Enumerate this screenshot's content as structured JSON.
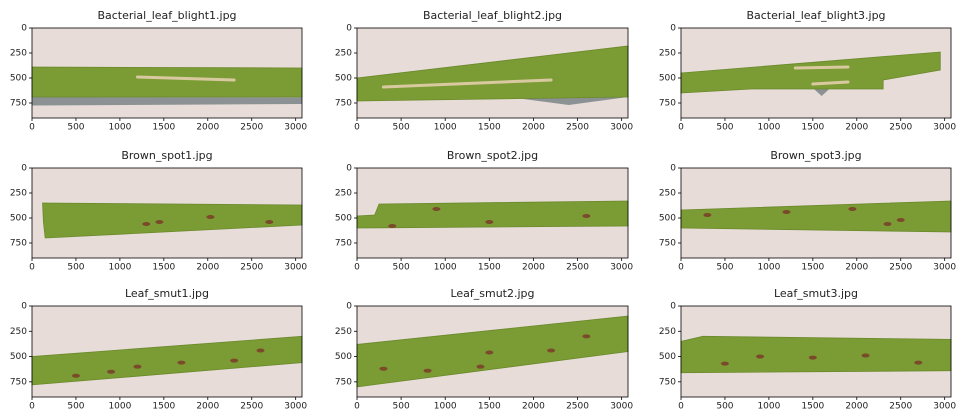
{
  "chart_data": [
    {
      "type": "image",
      "title": "Bacterial_leaf_blight1.jpg",
      "xlim": [
        0,
        3072
      ],
      "ylim": [
        900,
        0
      ],
      "xticks": [
        0,
        500,
        1000,
        1500,
        2000,
        2500,
        3000
      ],
      "yticks": [
        0,
        250,
        500,
        750
      ]
    },
    {
      "type": "image",
      "title": "Bacterial_leaf_blight2.jpg",
      "xlim": [
        0,
        3072
      ],
      "ylim": [
        900,
        0
      ],
      "xticks": [
        0,
        500,
        1000,
        1500,
        2000,
        2500,
        3000
      ],
      "yticks": [
        0,
        250,
        500,
        750
      ]
    },
    {
      "type": "image",
      "title": "Bacterial_leaf_blight3.jpg",
      "xlim": [
        0,
        3072
      ],
      "ylim": [
        900,
        0
      ],
      "xticks": [
        0,
        500,
        1000,
        1500,
        2000,
        2500,
        3000
      ],
      "yticks": [
        0,
        250,
        500,
        750
      ]
    },
    {
      "type": "image",
      "title": "Brown_spot1.jpg",
      "xlim": [
        0,
        3072
      ],
      "ylim": [
        900,
        0
      ],
      "xticks": [
        0,
        500,
        1000,
        1500,
        2000,
        2500,
        3000
      ],
      "yticks": [
        0,
        250,
        500,
        750
      ]
    },
    {
      "type": "image",
      "title": "Brown_spot2.jpg",
      "xlim": [
        0,
        3072
      ],
      "ylim": [
        900,
        0
      ],
      "xticks": [
        0,
        500,
        1000,
        1500,
        2000,
        2500,
        3000
      ],
      "yticks": [
        0,
        250,
        500,
        750
      ]
    },
    {
      "type": "image",
      "title": "Brown_spot3.jpg",
      "xlim": [
        0,
        3072
      ],
      "ylim": [
        900,
        0
      ],
      "xticks": [
        0,
        500,
        1000,
        1500,
        2000,
        2500,
        3000
      ],
      "yticks": [
        0,
        250,
        500,
        750
      ]
    },
    {
      "type": "image",
      "title": "Leaf_smut1.jpg",
      "xlim": [
        0,
        3072
      ],
      "ylim": [
        900,
        0
      ],
      "xticks": [
        0,
        500,
        1000,
        1500,
        2000,
        2500,
        3000
      ],
      "yticks": [
        0,
        250,
        500,
        750
      ]
    },
    {
      "type": "image",
      "title": "Leaf_smut2.jpg",
      "xlim": [
        0,
        3072
      ],
      "ylim": [
        900,
        0
      ],
      "xticks": [
        0,
        500,
        1000,
        1500,
        2000,
        2500,
        3000
      ],
      "yticks": [
        0,
        250,
        500,
        750
      ]
    },
    {
      "type": "image",
      "title": "Leaf_smut3.jpg",
      "xlim": [
        0,
        3072
      ],
      "ylim": [
        900,
        0
      ],
      "xticks": [
        0,
        500,
        1000,
        1500,
        2000,
        2500,
        3000
      ],
      "yticks": [
        0,
        250,
        500,
        750
      ]
    }
  ]
}
